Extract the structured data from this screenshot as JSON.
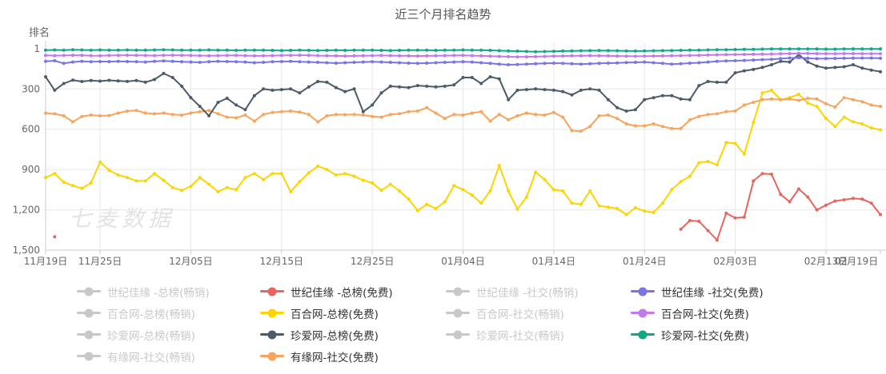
{
  "watermark": "七麦数据",
  "legend": {
    "disabled_color": "#c8c8c8",
    "active_label_color": "#333333",
    "disabled_label_color": "#c9c9c9",
    "columns": [
      [
        0,
        4,
        8,
        12
      ],
      [
        1,
        5,
        9,
        13
      ],
      [
        2,
        6,
        10
      ],
      [
        3,
        7,
        11
      ]
    ]
  },
  "chart_data": {
    "type": "line",
    "title": "近三个月排名趋势",
    "grid": true,
    "legend_position": "bottom",
    "y_axis": {
      "name": "排名",
      "inverted": true,
      "min": 1,
      "max": 1500,
      "ticks": [
        "1",
        "300",
        "600",
        "900",
        "1,200",
        "1,500"
      ],
      "tick_values": [
        1,
        300,
        600,
        900,
        1200,
        1500
      ]
    },
    "x_axis": {
      "num_points": 93,
      "ticks": [
        {
          "index": 0,
          "label": "11月19日"
        },
        {
          "index": 6,
          "label": "11月25日"
        },
        {
          "index": 16,
          "label": "12月05日"
        },
        {
          "index": 26,
          "label": "12月15日"
        },
        {
          "index": 36,
          "label": "12月25日"
        },
        {
          "index": 46,
          "label": "01月04日"
        },
        {
          "index": 56,
          "label": "01月14日"
        },
        {
          "index": 66,
          "label": "01月24日"
        },
        {
          "index": 76,
          "label": "02月03日"
        },
        {
          "index": 86,
          "label": "02月13日"
        },
        {
          "index": 92,
          "label": "02月19日"
        }
      ]
    },
    "series": [
      {
        "id": "shijijiayuan-total-bestseller",
        "name": "世纪佳缘 -总榜(畅销)",
        "visible": false,
        "color": "#c8c8c8",
        "z": 0,
        "values": null
      },
      {
        "id": "shijijiayuan-total-free",
        "name": "世纪佳缘 -总榜(免费)",
        "visible": true,
        "color": "#e8655f",
        "z": 1,
        "values": [
          null,
          1400,
          null,
          null,
          null,
          null,
          null,
          null,
          null,
          null,
          null,
          null,
          null,
          null,
          null,
          null,
          null,
          null,
          null,
          null,
          null,
          null,
          null,
          null,
          null,
          null,
          null,
          null,
          null,
          null,
          null,
          null,
          null,
          null,
          null,
          null,
          null,
          null,
          null,
          null,
          null,
          null,
          null,
          null,
          null,
          null,
          null,
          null,
          null,
          null,
          null,
          null,
          null,
          null,
          null,
          null,
          null,
          null,
          null,
          null,
          null,
          null,
          null,
          null,
          null,
          null,
          null,
          null,
          null,
          null,
          1345,
          1280,
          1285,
          1355,
          1425,
          1225,
          1260,
          1255,
          985,
          930,
          935,
          1085,
          1140,
          1045,
          1105,
          1200,
          1165,
          1135,
          1125,
          1115,
          1120,
          1150,
          1235
        ]
      },
      {
        "id": "shijijiayuan-social-bestseller",
        "name": "世纪佳缘 -社交(畅销)",
        "visible": false,
        "color": "#c8c8c8",
        "z": 0,
        "values": null
      },
      {
        "id": "shijijiayuan-social-free",
        "name": "世纪佳缘 -社交(免费)",
        "visible": true,
        "color": "#7b74e8",
        "z": 5,
        "values": [
          95,
          90,
          110,
          100,
          95,
          98,
          96,
          97,
          95,
          96,
          98,
          100,
          95,
          92,
          95,
          98,
          100,
          102,
          98,
          95,
          96,
          98,
          100,
          105,
          102,
          98,
          96,
          95,
          98,
          100,
          102,
          105,
          108,
          105,
          102,
          100,
          98,
          100,
          102,
          105,
          108,
          110,
          108,
          105,
          102,
          100,
          98,
          100,
          105,
          110,
          115,
          120,
          118,
          115,
          112,
          110,
          108,
          110,
          112,
          115,
          112,
          110,
          108,
          106,
          104,
          102,
          100,
          105,
          110,
          115,
          112,
          108,
          105,
          100,
          95,
          92,
          90,
          88,
          85,
          82,
          80,
          75,
          70,
          68,
          72,
          75,
          74,
          73,
          72,
          71,
          70,
          70,
          72
        ]
      },
      {
        "id": "baihe-total-bestseller",
        "name": "百合网-总榜(畅销)",
        "visible": false,
        "color": "#c8c8c8",
        "z": 0,
        "values": null
      },
      {
        "id": "baihe-total-free",
        "name": "百合网-总榜(免费)",
        "visible": true,
        "color": "#fcd500",
        "z": 2,
        "values": [
          960,
          930,
          995,
          1020,
          1040,
          1000,
          845,
          905,
          940,
          960,
          985,
          985,
          930,
          980,
          1035,
          1055,
          1025,
          960,
          1010,
          1065,
          1035,
          1050,
          960,
          930,
          975,
          930,
          930,
          1065,
          990,
          925,
          875,
          900,
          940,
          930,
          950,
          980,
          1000,
          1055,
          1010,
          1060,
          1120,
          1205,
          1160,
          1190,
          1140,
          1020,
          1050,
          1090,
          1150,
          1060,
          870,
          1060,
          1195,
          1105,
          920,
          975,
          1050,
          1060,
          1150,
          1160,
          1060,
          1170,
          1180,
          1190,
          1235,
          1185,
          1210,
          1220,
          1150,
          1050,
          990,
          950,
          850,
          840,
          865,
          700,
          705,
          785,
          550,
          330,
          310,
          380,
          365,
          340,
          405,
          430,
          520,
          580,
          510,
          545,
          560,
          590,
          605
        ]
      },
      {
        "id": "baihe-social-bestseller",
        "name": "百合网-社交(畅销)",
        "visible": false,
        "color": "#c8c8c8",
        "z": 0,
        "values": null
      },
      {
        "id": "baihe-social-free",
        "name": "百合网-社交(免费)",
        "visible": true,
        "color": "#c279ec",
        "z": 6,
        "values": [
          50,
          52,
          51,
          49,
          50,
          52,
          53,
          51,
          50,
          49,
          50,
          51,
          52,
          50,
          49,
          50,
          51,
          52,
          53,
          52,
          51,
          50,
          52,
          54,
          53,
          52,
          51,
          50,
          49,
          50,
          52,
          53,
          54,
          55,
          54,
          53,
          52,
          51,
          52,
          53,
          54,
          55,
          54,
          53,
          52,
          51,
          50,
          52,
          54,
          56,
          58,
          60,
          62,
          61,
          60,
          58,
          56,
          55,
          54,
          53,
          52,
          53,
          54,
          55,
          56,
          57,
          56,
          55,
          54,
          53,
          52,
          51,
          50,
          48,
          46,
          45,
          44,
          43,
          42,
          41,
          40,
          38,
          37,
          36,
          36,
          37,
          38,
          38,
          37,
          37,
          38,
          38,
          38
        ]
      },
      {
        "id": "zhenai-total-bestseller",
        "name": "珍爱网-总榜(畅销)",
        "visible": false,
        "color": "#c8c8c8",
        "z": 0,
        "values": null
      },
      {
        "id": "zhenai-total-free",
        "name": "珍爱网-总榜(免费)",
        "visible": true,
        "color": "#4b5b69",
        "z": 4,
        "values": [
          210,
          310,
          260,
          235,
          245,
          238,
          242,
          236,
          240,
          244,
          238,
          250,
          230,
          185,
          215,
          280,
          365,
          430,
          500,
          400,
          370,
          420,
          455,
          350,
          300,
          310,
          305,
          300,
          330,
          285,
          245,
          250,
          290,
          320,
          300,
          470,
          420,
          330,
          280,
          285,
          290,
          275,
          280,
          285,
          280,
          270,
          215,
          215,
          260,
          210,
          225,
          380,
          310,
          305,
          300,
          305,
          310,
          320,
          345,
          310,
          300,
          310,
          380,
          440,
          465,
          455,
          380,
          365,
          350,
          350,
          375,
          380,
          275,
          245,
          250,
          250,
          180,
          165,
          155,
          140,
          120,
          95,
          100,
          45,
          100,
          130,
          145,
          140,
          135,
          120,
          145,
          160,
          172
        ]
      },
      {
        "id": "zhenai-social-bestseller",
        "name": "珍爱网-社交(畅销)",
        "visible": false,
        "color": "#c8c8c8",
        "z": 0,
        "values": null
      },
      {
        "id": "zhenai-social-free",
        "name": "珍爱网-社交(免费)",
        "visible": true,
        "color": "#0fa886",
        "z": 7,
        "values": [
          12,
          10,
          11,
          9,
          10,
          11,
          10,
          12,
          11,
          10,
          11,
          12,
          10,
          9,
          10,
          11,
          12,
          11,
          10,
          11,
          12,
          13,
          12,
          11,
          12,
          13,
          14,
          13,
          12,
          13,
          14,
          13,
          12,
          13,
          12,
          11,
          12,
          13,
          14,
          13,
          12,
          11,
          12,
          13,
          12,
          11,
          10,
          11,
          12,
          13,
          15,
          17,
          19,
          21,
          23,
          22,
          20,
          18,
          17,
          16,
          15,
          14,
          15,
          16,
          17,
          18,
          17,
          16,
          15,
          14,
          13,
          12,
          11,
          10,
          9,
          8,
          7,
          6,
          5,
          4,
          3,
          3,
          2,
          2,
          3,
          3,
          4,
          4,
          3,
          3,
          3,
          3,
          3
        ]
      },
      {
        "id": "youyuan-social-bestseller",
        "name": "有缘网-社交(畅销)",
        "visible": false,
        "color": "#c8c8c8",
        "z": 0,
        "values": null
      },
      {
        "id": "youyuan-social-free",
        "name": "有缘网-社交(免费)",
        "visible": true,
        "color": "#f8a45d",
        "z": 3,
        "values": [
          480,
          485,
          500,
          545,
          505,
          495,
          500,
          498,
          480,
          465,
          460,
          480,
          485,
          480,
          490,
          495,
          480,
          470,
          460,
          485,
          510,
          515,
          495,
          540,
          490,
          475,
          470,
          465,
          472,
          490,
          545,
          500,
          490,
          492,
          490,
          495,
          505,
          510,
          490,
          485,
          470,
          465,
          440,
          480,
          520,
          490,
          495,
          480,
          470,
          540,
          490,
          530,
          500,
          480,
          490,
          495,
          475,
          510,
          610,
          615,
          580,
          500,
          495,
          520,
          560,
          575,
          575,
          560,
          580,
          595,
          595,
          530,
          505,
          490,
          485,
          470,
          465,
          420,
          400,
          380,
          375,
          380,
          375,
          385,
          370,
          375,
          410,
          435,
          365,
          380,
          395,
          420,
          430
        ]
      }
    ]
  }
}
